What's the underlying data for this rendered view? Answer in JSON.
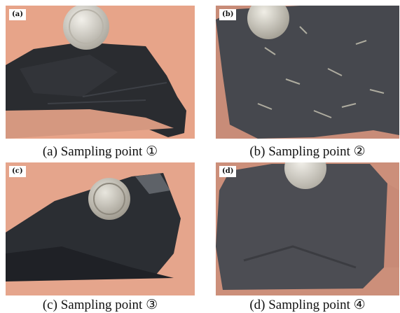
{
  "figure": {
    "panels": [
      {
        "tag": "(a)",
        "caption": "(a) Sampling point ①"
      },
      {
        "tag": "(b)",
        "caption": "(b) Sampling point ②"
      },
      {
        "tag": "(c)",
        "caption": "(c) Sampling point ③"
      },
      {
        "tag": "(d)",
        "caption": "(d) Sampling point ④"
      }
    ]
  },
  "colors": {
    "background_a": "#e6a188",
    "background_b": "#c98c7a",
    "rock_black": "#2b2d31",
    "rock_grey": "#4d4e54",
    "coin": "#d8d5cc"
  }
}
